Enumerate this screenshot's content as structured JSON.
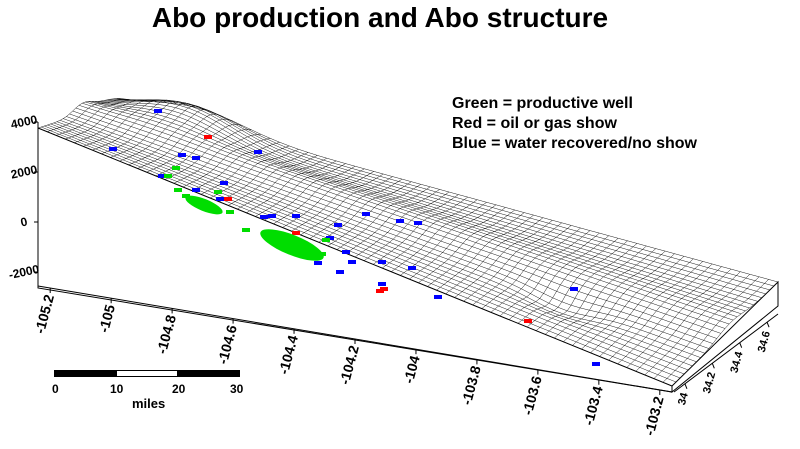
{
  "title": "Abo production and Abo structure",
  "legend": [
    {
      "text": "Green = productive well",
      "color": "#00dd00"
    },
    {
      "text": "Red = oil or gas show",
      "color": "#ff0000"
    },
    {
      "text": "Blue = water recovered/no show",
      "color": "#0000ff"
    }
  ],
  "z_axis": {
    "ticks": [
      "4000",
      "2000",
      "0",
      "-2000"
    ]
  },
  "x_axis": {
    "ticks": [
      "-105.2",
      "-105",
      "-104.8",
      "-104.6",
      "-104.4",
      "-104.2",
      "-104",
      "-103.8",
      "-103.6",
      "-103.4",
      "-103.2"
    ]
  },
  "y_axis": {
    "ticks": [
      "34",
      "34.2",
      "34.4",
      "34.6"
    ]
  },
  "scale_bar": {
    "ticks": [
      "0",
      "10",
      "20",
      "30"
    ],
    "unit": "miles"
  },
  "colors": {
    "productive": "#00dd00",
    "show": "#ff0000",
    "water": "#0000ff",
    "mesh": "#000000"
  }
}
